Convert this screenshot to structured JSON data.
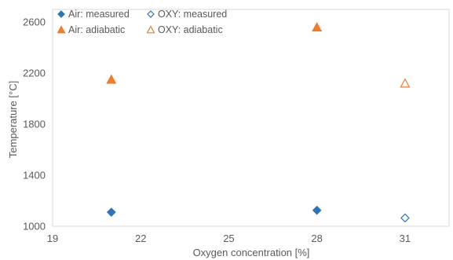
{
  "chart_data": {
    "type": "scatter",
    "title": "",
    "xlabel": "Oxygen concentration [%]",
    "ylabel": "Temperature [°C]",
    "xlim": [
      19,
      32.5
    ],
    "ylim": [
      1000,
      2700
    ],
    "xticks": [
      19,
      22,
      25,
      28,
      31
    ],
    "yticks": [
      1000,
      1400,
      1800,
      2200,
      2600
    ],
    "grid": false,
    "legend": {
      "placement": "top-left",
      "columns": 2
    },
    "series": [
      {
        "name": "Air: measured",
        "marker": "diamond",
        "filled": true,
        "color": "#2E75B6",
        "points": [
          {
            "x": 21,
            "y": 1110
          },
          {
            "x": 28,
            "y": 1125
          }
        ]
      },
      {
        "name": "OXY: measured",
        "marker": "diamond",
        "filled": false,
        "color": "#2E75B6",
        "points": [
          {
            "x": 31,
            "y": 1065
          }
        ]
      },
      {
        "name": "Air: adiabatic",
        "marker": "triangle",
        "filled": true,
        "color": "#ED7D31",
        "points": [
          {
            "x": 21,
            "y": 2150
          },
          {
            "x": 28,
            "y": 2560
          }
        ]
      },
      {
        "name": "OXY: adiabatic",
        "marker": "triangle",
        "filled": false,
        "color": "#ED7D31",
        "points": [
          {
            "x": 31,
            "y": 2120
          }
        ]
      }
    ]
  }
}
